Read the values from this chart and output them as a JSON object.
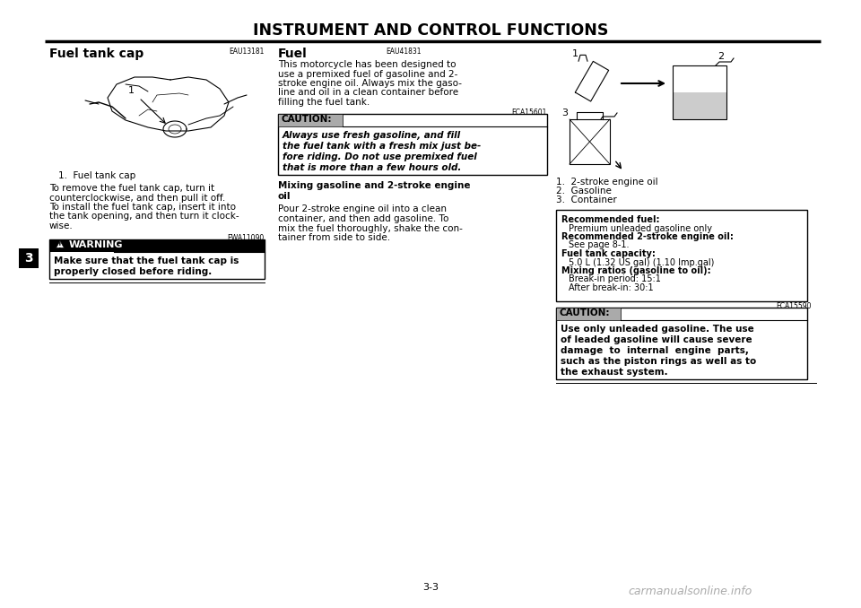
{
  "bg_color": "#ffffff",
  "title": "INSTRUMENT AND CONTROL FUNCTIONS",
  "page_num": "3-3",
  "chapter_num": "3",
  "left_col": {
    "section_code": "EAU13181",
    "heading": "Fuel tank cap",
    "caption": "1.  Fuel tank cap",
    "body_lines": [
      "To remove the fuel tank cap, turn it",
      "counterclockwise, and then pull it off.",
      "To install the fuel tank cap, insert it into",
      "the tank opening, and then turn it clock-",
      "wise."
    ],
    "warning_code": "EWA11090",
    "warning_text_lines": [
      "Make sure that the fuel tank cap is",
      "properly closed before riding."
    ]
  },
  "mid_col": {
    "section_code": "EAU41831",
    "heading": "Fuel",
    "body_lines": [
      "This motorcycle has been designed to",
      "use a premixed fuel of gasoline and 2-",
      "stroke engine oil. Always mix the gaso-",
      "line and oil in a clean container before",
      "filling the fuel tank."
    ],
    "caution1_code": "ECA15601",
    "caution1_text_lines": [
      "Always use fresh gasoline, and fill",
      "the fuel tank with a fresh mix just be-",
      "fore riding. Do not use premixed fuel",
      "that is more than a few hours old."
    ],
    "mixing_heading_lines": [
      "Mixing gasoline and 2-stroke engine",
      "oil"
    ],
    "mixing_body_lines": [
      "Pour 2-stroke engine oil into a clean",
      "container, and then add gasoline. To",
      "mix the fuel thoroughly, shake the con-",
      "tainer from side to side."
    ]
  },
  "right_col": {
    "diagram_captions": [
      "1.  2-stroke engine oil",
      "2.  Gasoline",
      "3.  Container"
    ],
    "info_box": {
      "items": [
        {
          "text": "Recommended fuel:",
          "bold": true,
          "indent": 0
        },
        {
          "text": "Premium unleaded gasoline only",
          "bold": false,
          "indent": 8
        },
        {
          "text": "Recommended 2-stroke engine oil:",
          "bold": true,
          "indent": 0
        },
        {
          "text": "See page 8-1.",
          "bold": false,
          "indent": 8
        },
        {
          "text": "Fuel tank capacity:",
          "bold": true,
          "indent": 0
        },
        {
          "text": "5.0 L (1.32 US gal) (1.10 Imp.gal)",
          "bold": false,
          "indent": 8
        },
        {
          "text": "Mixing ratios (gasoline to oil):",
          "bold": true,
          "indent": 0
        },
        {
          "text": "Break-in period: 15:1",
          "bold": false,
          "indent": 8
        },
        {
          "text": "After break-in: 30:1",
          "bold": false,
          "indent": 8
        }
      ]
    },
    "caution2_code": "ECA15590",
    "caution2_text_lines": [
      "Use only unleaded gasoline. The use",
      "of leaded gasoline will cause severe",
      "damage  to  internal  engine  parts,",
      "such as the piston rings as well as to",
      "the exhaust system."
    ]
  },
  "watermark": "carmanualsonline.info"
}
